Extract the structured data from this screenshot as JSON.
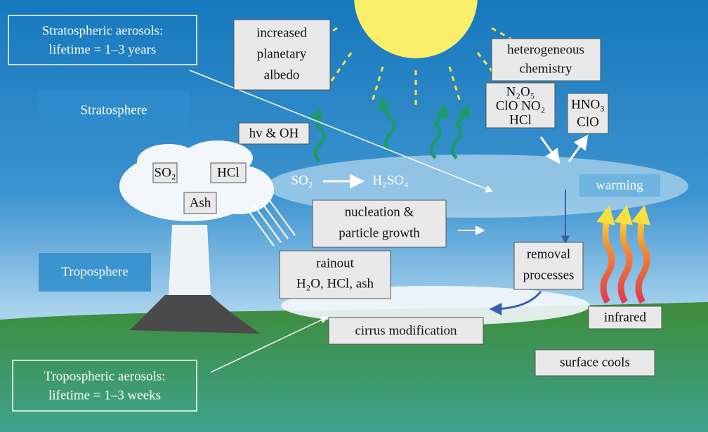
{
  "labels": {
    "stratospheric_aerosols": [
      "Stratospheric aerosols:",
      "lifetime = 1–3 years"
    ],
    "albedo": [
      "increased",
      "planetary",
      "albedo"
    ],
    "heterogeneous": [
      "heterogeneous",
      "chemistry"
    ],
    "reservoirs": [
      "N₂O₅",
      "ClO NO₂",
      "HCl"
    ],
    "products": [
      "HNO₃",
      "ClO"
    ],
    "stratosphere": "Stratosphere",
    "hv_oh": "hv & OH",
    "so2_cloud": "SO₂",
    "hcl_cloud": "HCl",
    "ash": "Ash",
    "so2": "SO₂",
    "h2so4": "H₂SO₄",
    "warming": "warming",
    "nucleation": [
      "nucleation &",
      "particle growth"
    ],
    "removal": [
      "removal",
      "processes"
    ],
    "troposphere": "Troposphere",
    "rainout": [
      "rainout",
      "H₂O, HCl, ash"
    ],
    "infrared": "infrared",
    "cirrus": "cirrus modification",
    "surface": "surface cools",
    "tropospheric_aerosols": [
      "Tropospheric aerosols:",
      "lifetime = 1–3 weeks"
    ]
  }
}
